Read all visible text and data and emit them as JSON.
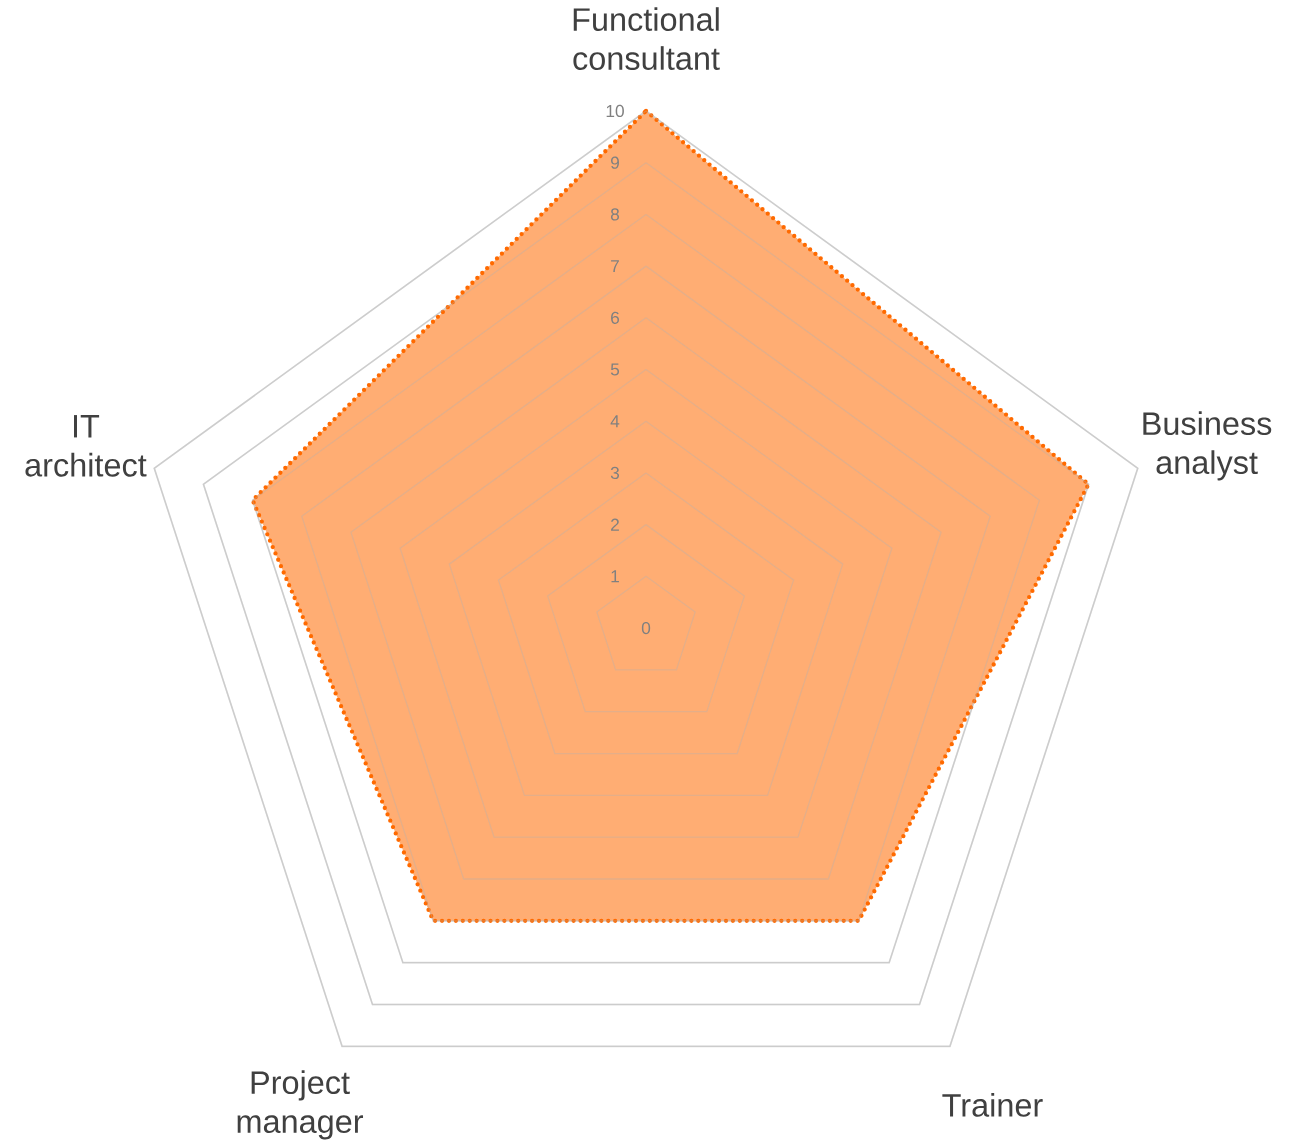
{
  "chart_data": {
    "type": "radar",
    "categories": [
      "Functional consultant",
      "Business analyst",
      "Trainer",
      "Project manager",
      "IT architect"
    ],
    "series": [
      {
        "color": "#ff6a00",
        "values": [
          10,
          9,
          7,
          7,
          8
        ]
      }
    ],
    "ylim": [
      0,
      10
    ],
    "yticks": [
      0,
      1,
      2,
      3,
      4,
      5,
      6,
      7,
      8,
      9,
      10
    ],
    "grid": true,
    "line_style": "dotted",
    "marker": "none"
  }
}
